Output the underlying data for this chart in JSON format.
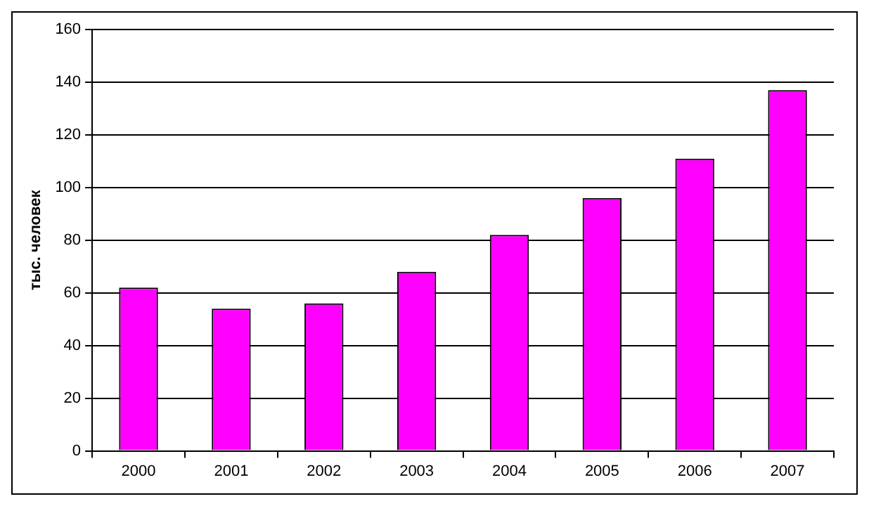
{
  "chart_data": {
    "type": "bar",
    "ylabel": "тыс. человек",
    "categories": [
      "2000",
      "2001",
      "2002",
      "2003",
      "2004",
      "2005",
      "2006",
      "2007"
    ],
    "values": [
      62,
      54,
      56,
      68,
      82,
      96,
      111,
      137
    ],
    "color": "#ff00ff",
    "ylim": [
      0,
      160
    ],
    "yticks": [
      0,
      20,
      40,
      60,
      80,
      100,
      120,
      140,
      160
    ],
    "grid": "y",
    "legend": false
  }
}
